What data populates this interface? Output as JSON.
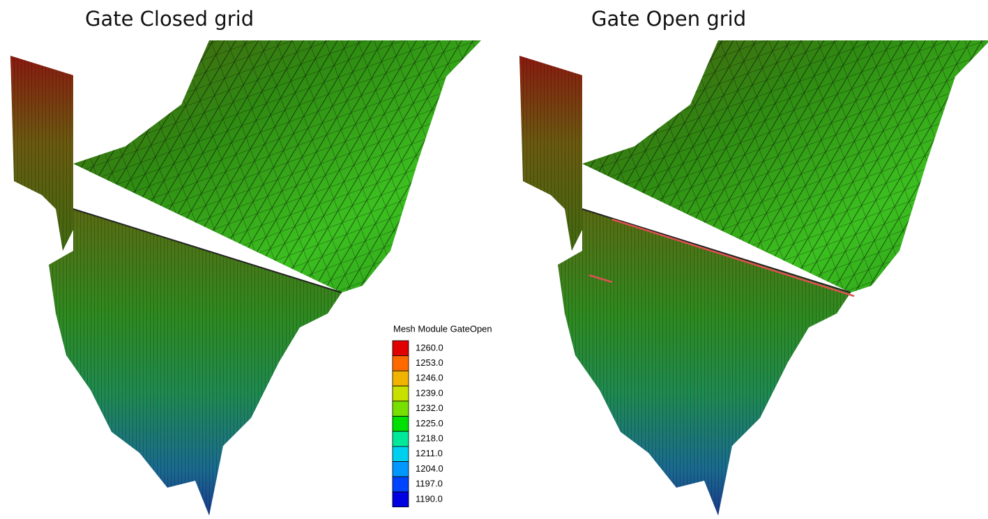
{
  "panels": [
    {
      "title": "Gate Closed grid"
    },
    {
      "title": "Gate Open grid"
    }
  ],
  "legend": {
    "title": "Mesh Module GateOpen",
    "items": [
      {
        "label": "1260.0",
        "color": "#e00000"
      },
      {
        "label": "1253.0",
        "color": "#ff6a00"
      },
      {
        "label": "1246.0",
        "color": "#f0b400"
      },
      {
        "label": "1239.0",
        "color": "#c8e000"
      },
      {
        "label": "1232.0",
        "color": "#78e000"
      },
      {
        "label": "1225.0",
        "color": "#00e000"
      },
      {
        "label": "1218.0",
        "color": "#00e89a"
      },
      {
        "label": "1211.0",
        "color": "#00d0f0"
      },
      {
        "label": "1204.0",
        "color": "#0098ff"
      },
      {
        "label": "1197.0",
        "color": "#0044ff"
      },
      {
        "label": "1190.0",
        "color": "#0000e0"
      }
    ]
  }
}
